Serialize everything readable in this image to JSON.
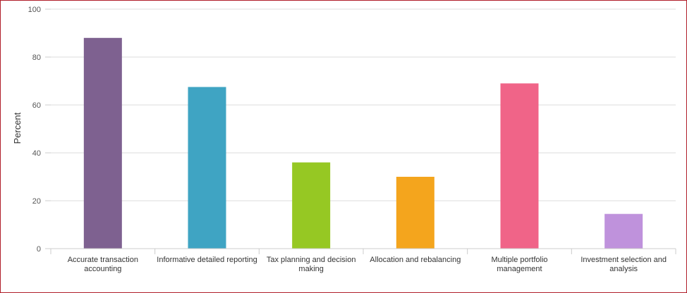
{
  "chart_data": {
    "type": "bar",
    "title": "",
    "xlabel": "",
    "ylabel": "Percent",
    "ylim": [
      0,
      100
    ],
    "yticks": [
      0,
      20,
      40,
      60,
      80,
      100
    ],
    "ytick_labels": [
      "0",
      "20",
      "40",
      "60",
      "80",
      "100"
    ],
    "grid": true,
    "categories": [
      [
        "Accurate transaction",
        "accounting"
      ],
      [
        "Informative detailed reporting"
      ],
      [
        "Tax planning and decision",
        "making"
      ],
      [
        "Allocation and rebalancing"
      ],
      [
        "Multiple portfolio",
        "management"
      ],
      [
        "Investment selection and",
        "analysis"
      ]
    ],
    "values": [
      88,
      67.5,
      36,
      30,
      69,
      14.5
    ],
    "colors": [
      "#7e6190",
      "#3fa4c3",
      "#96c823",
      "#f4a51d",
      "#f06488",
      "#bf92dc"
    ]
  },
  "colors": {
    "frame": "#b01e2a",
    "grid": "#dddddd",
    "axis": "#cccccc"
  }
}
